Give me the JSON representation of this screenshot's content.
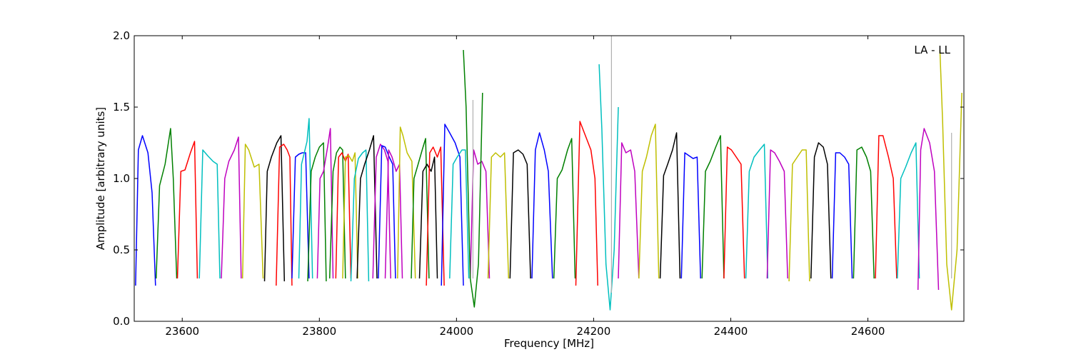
{
  "chart_data": {
    "type": "line",
    "title": "",
    "annotation": "LA - LL",
    "xlabel": "Frequency [MHz]",
    "ylabel": "Amplitude [arbitrary units]",
    "xlim": [
      23530,
      24740
    ],
    "ylim": [
      0.0,
      2.0
    ],
    "grid": false,
    "legend": "none",
    "x_ticks": [
      {
        "value": 23600,
        "label": "23600"
      },
      {
        "value": 23800,
        "label": "23800"
      },
      {
        "value": 24000,
        "label": "24000"
      },
      {
        "value": 24200,
        "label": "24200"
      },
      {
        "value": 24400,
        "label": "24400"
      },
      {
        "value": 24600,
        "label": "24600"
      }
    ],
    "y_ticks": [
      {
        "value": 0.0,
        "label": "0.0"
      },
      {
        "value": 0.5,
        "label": "0.5"
      },
      {
        "value": 1.0,
        "label": "1.0"
      },
      {
        "value": 1.5,
        "label": "1.5"
      },
      {
        "value": 2.0,
        "label": "2.0"
      }
    ],
    "series": [
      {
        "color": "#0000ff",
        "x": [
          23532,
          23536,
          23542,
          23550,
          23556,
          23561
        ],
        "y": [
          0.25,
          1.2,
          1.3,
          1.18,
          0.9,
          0.25
        ]
      },
      {
        "color": "#008000",
        "x": [
          23562,
          23567,
          23575,
          23583,
          23587,
          23592
        ],
        "y": [
          0.3,
          0.95,
          1.1,
          1.35,
          1.0,
          0.3
        ]
      },
      {
        "color": "#ff0000",
        "x": [
          23593,
          23598,
          23604,
          23612,
          23618,
          23622
        ],
        "y": [
          0.3,
          1.05,
          1.06,
          1.18,
          1.26,
          0.3
        ]
      },
      {
        "color": "#00bfbf",
        "x": [
          23625,
          23630,
          23637,
          23645,
          23651,
          23655
        ],
        "y": [
          0.3,
          1.2,
          1.16,
          1.12,
          1.1,
          0.3
        ]
      },
      {
        "color": "#bf00bf",
        "x": [
          23657,
          23662,
          23668,
          23676,
          23682,
          23686
        ],
        "y": [
          0.3,
          1.0,
          1.12,
          1.2,
          1.29,
          0.3
        ]
      },
      {
        "color": "#bfbf00",
        "x": [
          23688,
          23692,
          23697,
          23705,
          23712,
          23718
        ],
        "y": [
          0.3,
          1.24,
          1.2,
          1.08,
          1.1,
          0.3
        ]
      },
      {
        "color": "#000000",
        "x": [
          23720,
          23724,
          23730,
          23738,
          23744,
          23749
        ],
        "y": [
          0.28,
          1.05,
          1.15,
          1.25,
          1.3,
          0.28
        ]
      },
      {
        "color": "#ff0000",
        "x": [
          23737,
          23742,
          23748,
          23753,
          23757,
          23760
        ],
        "y": [
          0.25,
          1.22,
          1.24,
          1.2,
          1.15,
          0.25
        ]
      },
      {
        "color": "#0000ff",
        "x": [
          23760,
          23765,
          23770,
          23775,
          23780,
          23785
        ],
        "y": [
          0.3,
          1.15,
          1.17,
          1.18,
          1.18,
          0.3
        ]
      },
      {
        "color": "#00bfbf",
        "x": [
          23770,
          23774,
          23778,
          23782,
          23785,
          23790
        ],
        "y": [
          0.3,
          1.1,
          1.18,
          1.26,
          1.42,
          0.3
        ]
      },
      {
        "color": "#008000",
        "x": [
          23783,
          23788,
          23794,
          23800,
          23806,
          23810
        ],
        "y": [
          0.28,
          1.05,
          1.15,
          1.22,
          1.25,
          0.28
        ]
      },
      {
        "color": "#bf00bf",
        "x": [
          23797,
          23801,
          23806,
          23812,
          23816,
          23820
        ],
        "y": [
          0.3,
          1.0,
          1.05,
          1.22,
          1.35,
          0.3
        ]
      },
      {
        "color": "#008000",
        "x": [
          23815,
          23820,
          23825,
          23830,
          23834,
          23838
        ],
        "y": [
          0.3,
          1.05,
          1.18,
          1.22,
          1.2,
          0.3
        ]
      },
      {
        "color": "#ff0000",
        "x": [
          23824,
          23828,
          23833,
          23838,
          23842,
          23846
        ],
        "y": [
          0.3,
          1.15,
          1.18,
          1.12,
          1.17,
          0.3
        ]
      },
      {
        "color": "#bfbf00",
        "x": [
          23834,
          23838,
          23843,
          23848,
          23852,
          23856
        ],
        "y": [
          0.3,
          1.15,
          1.16,
          1.12,
          1.18,
          0.3
        ]
      },
      {
        "color": "#00bfbf",
        "x": [
          23846,
          23851,
          23857,
          23863,
          23868,
          23872
        ],
        "y": [
          0.28,
          1.0,
          1.14,
          1.18,
          1.2,
          0.28
        ]
      },
      {
        "color": "#000000",
        "x": [
          23855,
          23860,
          23866,
          23873,
          23879,
          23884
        ],
        "y": [
          0.3,
          1.0,
          1.1,
          1.2,
          1.3,
          0.3
        ]
      },
      {
        "color": "#bf00bf",
        "x": [
          23878,
          23883,
          23889,
          23895,
          23900,
          23904
        ],
        "y": [
          0.3,
          1.15,
          1.24,
          1.2,
          1.12,
          0.3
        ]
      },
      {
        "color": "#0000ff",
        "x": [
          23886,
          23891,
          23896,
          23902,
          23907,
          23911
        ],
        "y": [
          0.3,
          1.23,
          1.22,
          1.15,
          1.1,
          0.3
        ]
      },
      {
        "color": "#bf00bf",
        "x": [
          23896,
          23901,
          23906,
          23912,
          23917,
          23921
        ],
        "y": [
          0.3,
          1.2,
          1.15,
          1.05,
          1.1,
          0.3
        ]
      },
      {
        "color": "#bfbf00",
        "x": [
          23914,
          23918,
          23922,
          23928,
          23935,
          23940
        ],
        "y": [
          0.3,
          1.36,
          1.3,
          1.18,
          1.12,
          0.3
        ]
      },
      {
        "color": "#008000",
        "x": [
          23934,
          23938,
          23944,
          23950,
          23955,
          23960
        ],
        "y": [
          0.3,
          1.0,
          1.1,
          1.2,
          1.28,
          0.3
        ]
      },
      {
        "color": "#000000",
        "x": [
          23946,
          23951,
          23957,
          23963,
          23968,
          23972
        ],
        "y": [
          0.3,
          1.05,
          1.1,
          1.05,
          1.15,
          0.3
        ]
      },
      {
        "color": "#ff0000",
        "x": [
          23956,
          23961,
          23966,
          23972,
          23977,
          23982
        ],
        "y": [
          0.25,
          1.18,
          1.22,
          1.15,
          1.22,
          0.25
        ]
      },
      {
        "color": "#0000ff",
        "x": [
          23978,
          23983,
          23990,
          23998,
          24005,
          24010
        ],
        "y": [
          0.25,
          1.38,
          1.32,
          1.25,
          1.15,
          0.25
        ]
      },
      {
        "color": "#00bfbf",
        "x": [
          23990,
          23995,
          24001,
          24008,
          24013,
          24018
        ],
        "y": [
          0.3,
          1.1,
          1.15,
          1.2,
          1.2,
          0.3
        ]
      },
      {
        "color": "#bf00bf",
        "x": [
          24020,
          24025,
          24031,
          24037,
          24043,
          24048
        ],
        "y": [
          0.3,
          1.2,
          1.1,
          1.12,
          1.05,
          0.3
        ]
      },
      {
        "color": "#008000",
        "x": [
          24010,
          24014,
          24020,
          24026,
          24032,
          24038
        ],
        "y": [
          1.9,
          1.5,
          0.3,
          0.1,
          0.4,
          1.6
        ]
      },
      {
        "color": "#bfbf00",
        "x": [
          24046,
          24051,
          24057,
          24064,
          24070,
          24076
        ],
        "y": [
          0.3,
          1.15,
          1.18,
          1.15,
          1.18,
          0.3
        ]
      },
      {
        "color": "#000000",
        "x": [
          24078,
          24083,
          24090,
          24097,
          24103,
          24108
        ],
        "y": [
          0.3,
          1.18,
          1.2,
          1.17,
          1.1,
          0.3
        ]
      },
      {
        "color": "#0000ff",
        "x": [
          24110,
          24115,
          24121,
          24128,
          24134,
          24140
        ],
        "y": [
          0.3,
          1.2,
          1.32,
          1.2,
          1.05,
          0.3
        ]
      },
      {
        "color": "#008000",
        "x": [
          24142,
          24147,
          24154,
          24162,
          24168,
          24173
        ],
        "y": [
          0.3,
          1.0,
          1.06,
          1.2,
          1.28,
          0.3
        ]
      },
      {
        "color": "#ff0000",
        "x": [
          24174,
          24180,
          24188,
          24196,
          24202,
          24206
        ],
        "y": [
          0.25,
          1.4,
          1.3,
          1.2,
          1.0,
          0.25
        ]
      },
      {
        "color": "#00bfbf",
        "x": [
          24208,
          24212,
          24218,
          24224,
          24230,
          24236
        ],
        "y": [
          1.8,
          1.35,
          0.4,
          0.08,
          0.5,
          1.5
        ]
      },
      {
        "color": "#bf00bf",
        "x": [
          24236,
          24241,
          24247,
          24254,
          24260,
          24266
        ],
        "y": [
          0.3,
          1.25,
          1.18,
          1.2,
          1.05,
          0.3
        ]
      },
      {
        "color": "#bfbf00",
        "x": [
          24266,
          24271,
          24277,
          24284,
          24290,
          24295
        ],
        "y": [
          0.3,
          1.05,
          1.15,
          1.3,
          1.38,
          0.3
        ]
      },
      {
        "color": "#000000",
        "x": [
          24297,
          24302,
          24308,
          24315,
          24321,
          24326
        ],
        "y": [
          0.3,
          1.02,
          1.1,
          1.2,
          1.32,
          0.3
        ]
      },
      {
        "color": "#0000ff",
        "x": [
          24328,
          24333,
          24339,
          24345,
          24351,
          24356
        ],
        "y": [
          0.3,
          1.18,
          1.16,
          1.14,
          1.15,
          0.3
        ]
      },
      {
        "color": "#008000",
        "x": [
          24358,
          24363,
          24370,
          24378,
          24385,
          24390
        ],
        "y": [
          0.3,
          1.05,
          1.12,
          1.22,
          1.3,
          0.3
        ]
      },
      {
        "color": "#ff0000",
        "x": [
          24390,
          24395,
          24401,
          24408,
          24415,
          24420
        ],
        "y": [
          0.3,
          1.22,
          1.2,
          1.15,
          1.1,
          0.3
        ]
      },
      {
        "color": "#00bfbf",
        "x": [
          24422,
          24427,
          24434,
          24442,
          24449,
          24454
        ],
        "y": [
          0.3,
          1.05,
          1.15,
          1.2,
          1.24,
          0.3
        ]
      },
      {
        "color": "#bf00bf",
        "x": [
          24453,
          24458,
          24464,
          24471,
          24478,
          24483
        ],
        "y": [
          0.3,
          1.2,
          1.18,
          1.12,
          1.05,
          0.3
        ]
      },
      {
        "color": "#bfbf00",
        "x": [
          24485,
          24490,
          24497,
          24504,
          24510,
          24515
        ],
        "y": [
          0.28,
          1.1,
          1.15,
          1.2,
          1.2,
          0.28
        ]
      },
      {
        "color": "#000000",
        "x": [
          24517,
          24522,
          24528,
          24535,
          24541,
          24546
        ],
        "y": [
          0.3,
          1.15,
          1.25,
          1.22,
          1.1,
          0.3
        ]
      },
      {
        "color": "#0000ff",
        "x": [
          24548,
          24553,
          24559,
          24566,
          24572,
          24577
        ],
        "y": [
          0.3,
          1.18,
          1.18,
          1.15,
          1.1,
          0.3
        ]
      },
      {
        "color": "#008000",
        "x": [
          24579,
          24584,
          24591,
          24598,
          24604,
          24609
        ],
        "y": [
          0.3,
          1.2,
          1.22,
          1.15,
          1.05,
          0.3
        ]
      },
      {
        "color": "#ff0000",
        "x": [
          24611,
          24616,
          24622,
          24630,
          24637,
          24642
        ],
        "y": [
          0.3,
          1.3,
          1.3,
          1.15,
          1.0,
          0.3
        ]
      },
      {
        "color": "#00bfbf",
        "x": [
          24643,
          24648,
          24655,
          24663,
          24670,
          24675
        ],
        "y": [
          0.3,
          1.0,
          1.08,
          1.18,
          1.25,
          0.3
        ]
      },
      {
        "color": "#bf00bf",
        "x": [
          24673,
          24677,
          24682,
          24690,
          24697,
          24703
        ],
        "y": [
          0.22,
          1.2,
          1.35,
          1.25,
          1.05,
          0.22
        ]
      },
      {
        "color": "#bfbf00",
        "x": [
          24705,
          24709,
          24715,
          24722,
          24730,
          24737
        ],
        "y": [
          1.9,
          1.4,
          0.4,
          0.08,
          0.5,
          1.6
        ]
      }
    ],
    "spikes": [
      {
        "color": "#b0b0b0",
        "x": 24024,
        "y": [
          0.3,
          1.55
        ]
      },
      {
        "color": "#b0b0b0",
        "x": 24226,
        "y": [
          0.2,
          2.0
        ]
      },
      {
        "color": "#b0b0b0",
        "x": 24722,
        "y": [
          0.3,
          1.32
        ]
      }
    ]
  }
}
